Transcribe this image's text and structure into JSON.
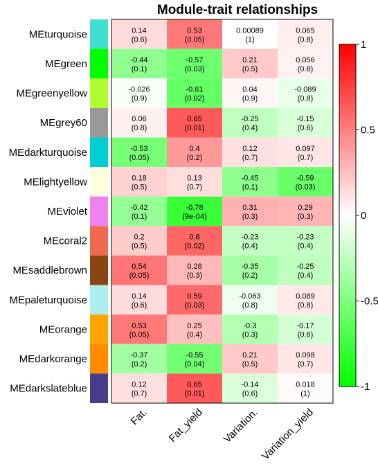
{
  "chart_data": {
    "type": "heatmap",
    "title": "Module-trait relationships",
    "columns": [
      "Fat.",
      "Fat_yield",
      "Variation.",
      "Variation_yield"
    ],
    "rows": [
      {
        "name": "MEturquoise",
        "color": "#40E0D0",
        "corr": [
          "0.14",
          "0.53",
          "0.00089",
          "0.065"
        ],
        "pval": [
          "(0.6)",
          "(0.05)",
          "(1)",
          "(0.8)"
        ]
      },
      {
        "name": "MEgreen",
        "color": "#00FF00",
        "corr": [
          "-0.44",
          "-0.57",
          "0.21",
          "0.056"
        ],
        "pval": [
          "(0.1)",
          "(0.03)",
          "(0.5)",
          "(0.8)"
        ]
      },
      {
        "name": "MEgreenyellow",
        "color": "#ADFF2F",
        "corr": [
          "-0.026",
          "-0.61",
          "0.04",
          "-0.089"
        ],
        "pval": [
          "(0.9)",
          "(0.02)",
          "(0.9)",
          "(0.8)"
        ]
      },
      {
        "name": "MEgrey60",
        "color": "#999999",
        "corr": [
          "0.06",
          "0.65",
          "-0.25",
          "-0.15"
        ],
        "pval": [
          "(0.8)",
          "(0.01)",
          "(0.4)",
          "(0.6)"
        ]
      },
      {
        "name": "MEdarkturquoise",
        "color": "#00CED1",
        "corr": [
          "-0.53",
          "0.4",
          "0.12",
          "0.097"
        ],
        "pval": [
          "(0.05)",
          "(0.2)",
          "(0.7)",
          "(0.7)"
        ]
      },
      {
        "name": "MElightyellow",
        "color": "#FFFFE0",
        "corr": [
          "0.18",
          "0.13",
          "-0.45",
          "-0.59"
        ],
        "pval": [
          "(0.5)",
          "(0.7)",
          "(0.1)",
          "(0.03)"
        ]
      },
      {
        "name": "MEviolet",
        "color": "#EE82EE",
        "corr": [
          "-0.42",
          "-0.78",
          "0.31",
          "0.29"
        ],
        "pval": [
          "(0.1)",
          "(9e-04)",
          "(0.3)",
          "(0.3)"
        ]
      },
      {
        "name": "MEcoral2",
        "color": "#EE6A50",
        "corr": [
          "0.2",
          "0.6",
          "-0.23",
          "-0.23"
        ],
        "pval": [
          "(0.5)",
          "(0.02)",
          "(0.4)",
          "(0.4)"
        ]
      },
      {
        "name": "MEsaddlebrown",
        "color": "#8B4513",
        "corr": [
          "0.54",
          "0.28",
          "-0.35",
          "-0.25"
        ],
        "pval": [
          "(0.05)",
          "(0.3)",
          "(0.2)",
          "(0.4)"
        ]
      },
      {
        "name": "MEpaleturquoise",
        "color": "#AFEEEE",
        "corr": [
          "0.14",
          "0.59",
          "-0.063",
          "0.089"
        ],
        "pval": [
          "(0.6)",
          "(0.03)",
          "(0.8)",
          "(0.8)"
        ]
      },
      {
        "name": "MEorange",
        "color": "#FFA500",
        "corr": [
          "0.53",
          "0.25",
          "-0.3",
          "-0.17"
        ],
        "pval": [
          "(0.05)",
          "(0.4)",
          "(0.3)",
          "(0.6)"
        ]
      },
      {
        "name": "MEdarkorange",
        "color": "#FF8C00",
        "corr": [
          "-0.37",
          "-0.55",
          "0.21",
          "0.098"
        ],
        "pval": [
          "(0.2)",
          "(0.04)",
          "(0.5)",
          "(0.7)"
        ]
      },
      {
        "name": "MEdarkslateblue",
        "color": "#483D8B",
        "corr": [
          "0.12",
          "0.65",
          "-0.14",
          "0.018"
        ],
        "pval": [
          "(0.7)",
          "(0.01)",
          "(0.6)",
          "(1)"
        ]
      }
    ],
    "colorbar": {
      "ticks": [
        "1",
        "0.5",
        "0",
        "-0.5",
        "-1"
      ],
      "range": [
        -1,
        1
      ],
      "low_color": "#00FF00",
      "mid_color": "#FFFFFF",
      "high_color": "#FF0000"
    }
  }
}
